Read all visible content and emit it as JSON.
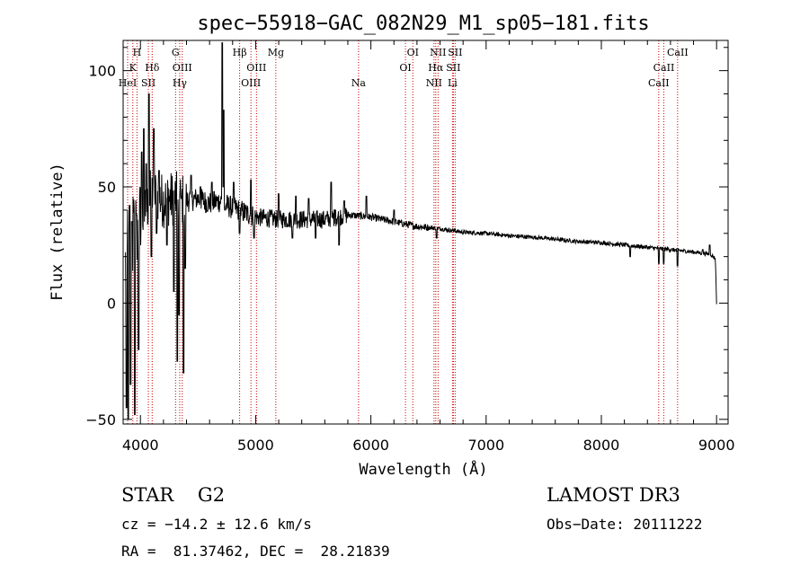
{
  "chart_data": {
    "type": "line",
    "title": "spec−55918−GAC_082N29_M1_sp05−181.fits",
    "xlabel": "Wavelength (Å)",
    "ylabel": "Flux (relative)",
    "xlim": [
      3850,
      9100
    ],
    "ylim": [
      -52,
      113
    ],
    "xticks": [
      {
        "v": 4000,
        "label": "4000"
      },
      {
        "v": 5000,
        "label": "5000"
      },
      {
        "v": 6000,
        "label": "6000"
      },
      {
        "v": 7000,
        "label": "7000"
      },
      {
        "v": 8000,
        "label": "8000"
      },
      {
        "v": 9000,
        "label": "9000"
      }
    ],
    "yticks": [
      {
        "v": -50,
        "label": "−50"
      },
      {
        "v": 0,
        "label": "0"
      },
      {
        "v": 50,
        "label": "50"
      },
      {
        "v": 100,
        "label": "100"
      }
    ],
    "line_color": "#CC0000",
    "spectrum_color": "#000000",
    "lines": [
      {
        "wave": 3889,
        "label": "HeI",
        "row": 3
      },
      {
        "wave": 3934,
        "label": "K",
        "row": 2
      },
      {
        "wave": 3970,
        "label": "H",
        "row": 1
      },
      {
        "wave": 4069,
        "label": "SII",
        "row": 3
      },
      {
        "wave": 4102,
        "label": "Hδ",
        "row": 2
      },
      {
        "wave": 4305,
        "label": "G",
        "row": 1
      },
      {
        "wave": 4341,
        "label": "Hγ",
        "row": 3
      },
      {
        "wave": 4363,
        "label": "OIII",
        "row": 2
      },
      {
        "wave": 4861,
        "label": "Hβ",
        "row": 1
      },
      {
        "wave": 4959,
        "label": "OIII",
        "row": 3
      },
      {
        "wave": 5007,
        "label": "OIII",
        "row": 2
      },
      {
        "wave": 5175,
        "label": "Mg",
        "row": 1
      },
      {
        "wave": 5893,
        "label": "Na",
        "row": 3
      },
      {
        "wave": 6300,
        "label": "OI",
        "row": 2
      },
      {
        "wave": 6364,
        "label": "OI",
        "row": 1
      },
      {
        "wave": 6548,
        "label": "NII",
        "row": 3
      },
      {
        "wave": 6563,
        "label": "Hα",
        "row": 2
      },
      {
        "wave": 6583,
        "label": "NII",
        "row": 1
      },
      {
        "wave": 6708,
        "label": "Li",
        "row": 3
      },
      {
        "wave": 6716,
        "label": "SII",
        "row": 2
      },
      {
        "wave": 6731,
        "label": "SII",
        "row": 1
      },
      {
        "wave": 8498,
        "label": "CaII",
        "row": 3
      },
      {
        "wave": 8542,
        "label": "CaII",
        "row": 2
      },
      {
        "wave": 8662,
        "label": "CaII",
        "row": 1
      }
    ],
    "continuum": [
      [
        3870,
        15
      ],
      [
        3900,
        20
      ],
      [
        3940,
        30
      ],
      [
        4000,
        34
      ],
      [
        4050,
        40
      ],
      [
        4100,
        48
      ],
      [
        4150,
        46
      ],
      [
        4200,
        44
      ],
      [
        4260,
        45
      ],
      [
        4300,
        45
      ],
      [
        4400,
        44
      ],
      [
        4500,
        45
      ],
      [
        4600,
        43
      ],
      [
        4700,
        44
      ],
      [
        4750,
        42
      ],
      [
        4800,
        41
      ],
      [
        4900,
        39
      ],
      [
        5000,
        37
      ],
      [
        5200,
        36
      ],
      [
        5400,
        36
      ],
      [
        5600,
        36
      ],
      [
        5800,
        38
      ],
      [
        6000,
        37
      ],
      [
        6200,
        35
      ],
      [
        6400,
        33
      ],
      [
        6600,
        32
      ],
      [
        6800,
        30.5
      ],
      [
        7000,
        30
      ],
      [
        7200,
        29
      ],
      [
        7500,
        28
      ],
      [
        7800,
        26.5
      ],
      [
        8000,
        26
      ],
      [
        8200,
        25
      ],
      [
        8400,
        24
      ],
      [
        8600,
        23
      ],
      [
        8800,
        22
      ],
      [
        8950,
        21
      ],
      [
        8990,
        19
      ],
      [
        9000,
        0
      ]
    ],
    "spikes": [
      [
        3880,
        -45
      ],
      [
        3895,
        -50
      ],
      [
        3905,
        42
      ],
      [
        3915,
        -35
      ],
      [
        3925,
        35
      ],
      [
        3950,
        -48
      ],
      [
        3965,
        38
      ],
      [
        3985,
        -20
      ],
      [
        4010,
        65
      ],
      [
        4030,
        75
      ],
      [
        4050,
        60
      ],
      [
        4075,
        90
      ],
      [
        4095,
        20
      ],
      [
        4115,
        75
      ],
      [
        4140,
        30
      ],
      [
        4160,
        57
      ],
      [
        4230,
        25
      ],
      [
        4290,
        5
      ],
      [
        4320,
        -25
      ],
      [
        4335,
        -5
      ],
      [
        4355,
        45
      ],
      [
        4373,
        -30
      ],
      [
        4390,
        15
      ],
      [
        4440,
        55
      ],
      [
        4520,
        50
      ],
      [
        4620,
        52
      ],
      [
        4710,
        112
      ],
      [
        4716,
        50
      ],
      [
        4723,
        83
      ],
      [
        4735,
        40
      ],
      [
        4810,
        52
      ],
      [
        4860,
        30
      ],
      [
        4960,
        53
      ],
      [
        4985,
        28
      ],
      [
        5200,
        47
      ],
      [
        5320,
        28
      ],
      [
        5350,
        46
      ],
      [
        5460,
        45
      ],
      [
        5520,
        28
      ],
      [
        5655,
        52
      ],
      [
        5690,
        40
      ],
      [
        5725,
        25
      ],
      [
        5770,
        44
      ],
      [
        5960,
        46
      ],
      [
        6200,
        40
      ],
      [
        6570,
        28
      ],
      [
        6730,
        32
      ],
      [
        8250,
        20
      ],
      [
        8498,
        17
      ],
      [
        8542,
        17
      ],
      [
        8662,
        16
      ],
      [
        8880,
        23
      ],
      [
        8940,
        25
      ]
    ]
  },
  "info": {
    "class_text": "STAR    G2",
    "survey": "LAMOST DR3",
    "cz": "cz = −14.2 ± 12.6 km/s",
    "obs_date": "Obs−Date: 20111222",
    "radec": "RA =  81.37462, DEC =  28.21839"
  }
}
